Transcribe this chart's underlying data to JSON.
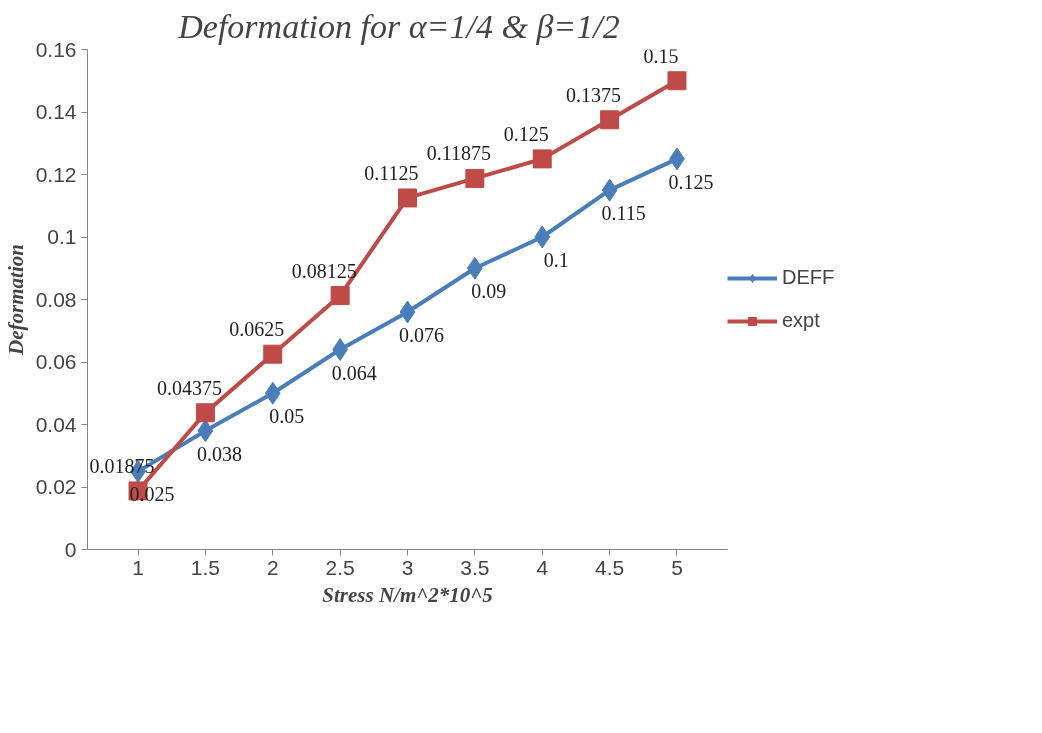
{
  "chart_data": {
    "type": "line",
    "title": "Deformation for   α=1/4 & β=1/2",
    "xlabel": "Stress N/m^2*10^5",
    "ylabel": "Deformation",
    "categories": [
      "1",
      "1.5",
      "2",
      "2.5",
      "3",
      "3.5",
      "4",
      "4.5",
      "5"
    ],
    "series": [
      {
        "name": "DEFF",
        "color": "#4a7ebb",
        "marker": "diamond",
        "values": [
          0.025,
          0.038,
          0.05,
          0.064,
          0.076,
          0.09,
          0.1,
          0.115,
          0.125
        ]
      },
      {
        "name": "expt",
        "color": "#be4b48",
        "marker": "square",
        "values": [
          0.01875,
          0.04375,
          0.0625,
          0.08125,
          0.1125,
          0.11875,
          0.125,
          0.1375,
          0.15
        ]
      }
    ],
    "ylim": [
      0,
      0.16
    ],
    "yticks": [
      0,
      0.02,
      0.04,
      0.06,
      0.08,
      0.1,
      0.12,
      0.14,
      0.16
    ],
    "data_labels": true,
    "legend": "right",
    "grid": false,
    "line_style": "solid"
  }
}
